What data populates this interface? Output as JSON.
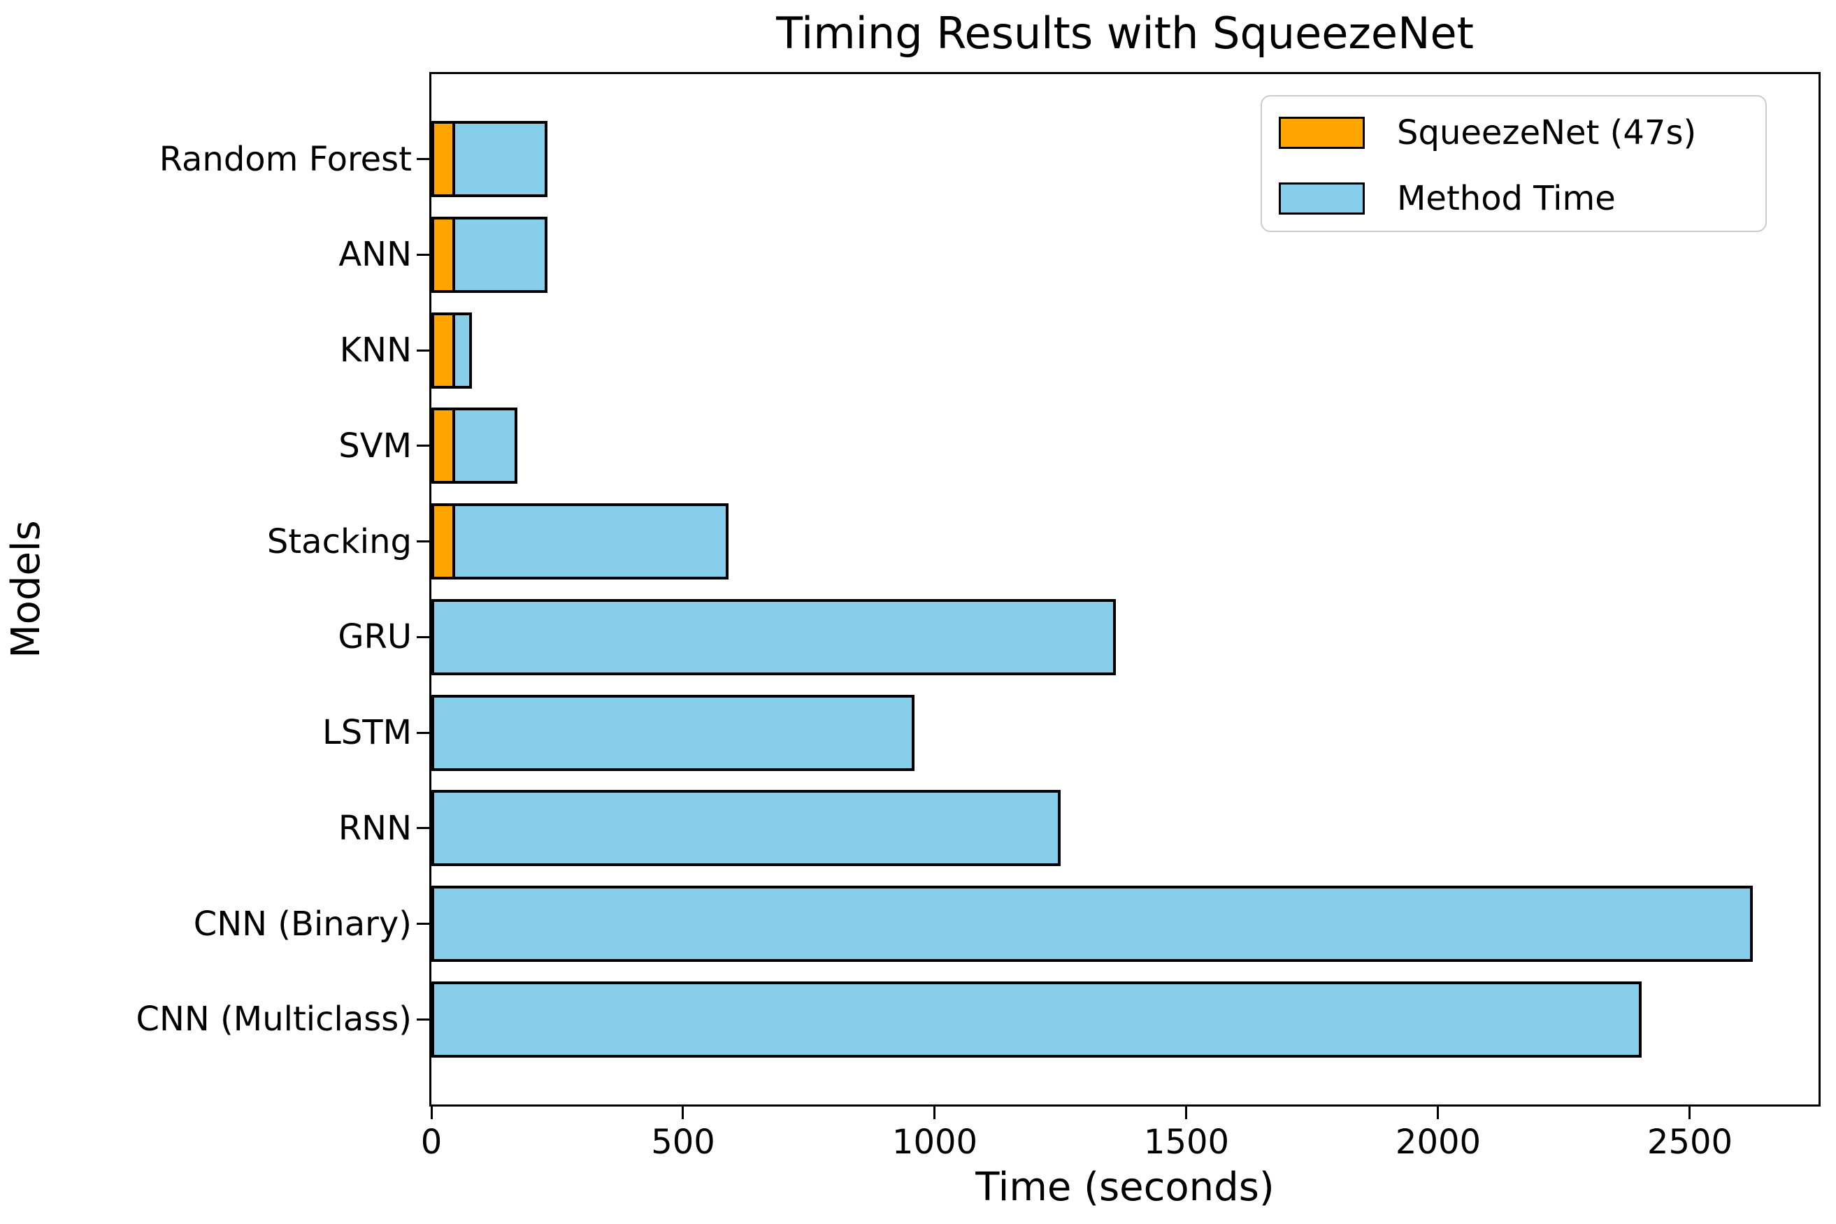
{
  "chart": {
    "title": "Timing Results with SqueezeNet",
    "xlabel": "Time (seconds)",
    "ylabel": "Models",
    "legend": {
      "items": [
        {
          "label": "SqueezeNet (47s)",
          "color": "#FFA500"
        },
        {
          "label": "Method Time",
          "color": "#87CEEB"
        }
      ],
      "position": "upper right"
    },
    "colors": {
      "squeezenet": "#FFA500",
      "method_time": "#87CEEB",
      "bar_edge": "#000000",
      "spine": "#000000",
      "background": "#ffffff",
      "legend_border": "#cccccc"
    }
  },
  "chart_data": {
    "type": "bar",
    "orientation": "horizontal",
    "stacked": true,
    "title": "Timing Results with SqueezeNet",
    "xlabel": "Time (seconds)",
    "ylabel": "Models",
    "categories": [
      "Random Forest",
      "ANN",
      "KNN",
      "SVM",
      "Stacking",
      "GRU",
      "LSTM",
      "RNN",
      "CNN (Binary)",
      "CNN (Multiclass)"
    ],
    "series": [
      {
        "name": "SqueezeNet (47s)",
        "color": "#FFA500",
        "values": [
          47,
          47,
          47,
          47,
          47,
          0,
          0,
          0,
          0,
          0
        ]
      },
      {
        "name": "Method Time",
        "color": "#87CEEB",
        "values": [
          183,
          183,
          33,
          123,
          543,
          1360,
          960,
          1250,
          2625,
          2405
        ]
      }
    ],
    "totals": [
      230,
      230,
      80,
      170,
      590,
      1360,
      960,
      1250,
      2625,
      2405
    ],
    "xlim": [
      0,
      2756
    ],
    "xticks": [
      0,
      500,
      1000,
      1500,
      2000,
      2500
    ],
    "grid": false,
    "legend_position": "upper right",
    "bar_edge_color": "#000000"
  }
}
